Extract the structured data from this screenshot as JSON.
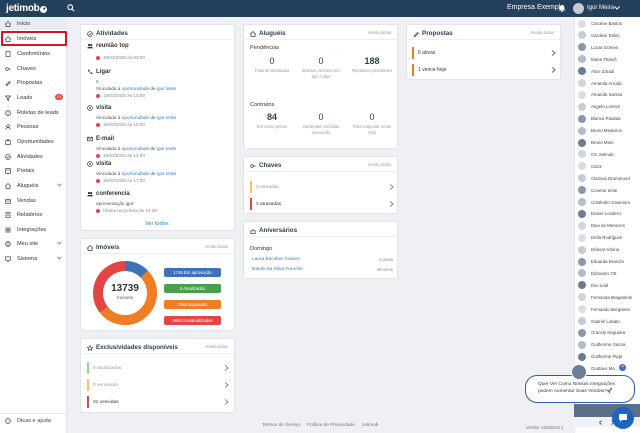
{
  "header": {
    "logo": "jetimob",
    "company": "Empresa Exemplo",
    "user": "Igor Meira"
  },
  "sidebar": {
    "items": [
      {
        "label": "Início",
        "icon": "home-icon"
      },
      {
        "label": "Imóveis",
        "icon": "house-icon"
      },
      {
        "label": "Condomínios",
        "icon": "building-icon"
      },
      {
        "label": "Chaves",
        "icon": "key-icon"
      },
      {
        "label": "Propostas",
        "icon": "proposal-icon"
      },
      {
        "label": "Leads",
        "icon": "leads-icon",
        "badge": "10"
      },
      {
        "label": "Roletas de leads",
        "icon": "roulette-icon"
      },
      {
        "label": "Pessoas",
        "icon": "people-icon"
      },
      {
        "label": "Oportunidades",
        "icon": "opportunity-icon"
      },
      {
        "label": "Atividades",
        "icon": "activities-icon"
      },
      {
        "label": "Portais",
        "icon": "portals-icon"
      },
      {
        "label": "Aluguéis",
        "icon": "rent-icon"
      },
      {
        "label": "Vendas",
        "icon": "sales-icon"
      },
      {
        "label": "Relatórios",
        "icon": "reports-icon"
      },
      {
        "label": "Integrações",
        "icon": "integrations-icon"
      },
      {
        "label": "Meu site",
        "icon": "site-icon"
      },
      {
        "label": "Sistema",
        "icon": "system-icon"
      }
    ],
    "footer": "Dicas e ajuda"
  },
  "activities": {
    "title": "Atividades",
    "items": [
      {
        "title": "reunião top",
        "lines": [],
        "date": "19/03/2025 às 03:00"
      },
      {
        "title": "Ligar",
        "lines": [
          "0",
          "Vinculada à |oportunidade| de |igor teste"
        ],
        "date": "19/03/2025 às 10:00"
      },
      {
        "title": "visita",
        "lines": [
          "Vinculada à |oportunidade| de |igor teste"
        ],
        "date": "19/03/2025 às 10:00"
      },
      {
        "title": "E-mail",
        "lines": [
          "Vinculada à |oportunidade| de |igor teste"
        ],
        "date": "19/03/2025 às 14:00"
      },
      {
        "title": "visita",
        "lines": [
          "Vinculada à |oportunidade| de |igor teste"
        ],
        "date": "19/03/2025 às 17:00"
      },
      {
        "title": "conferencia",
        "lines": [
          "apresentação igor"
        ],
        "date": "Última terça-feira às 13:00"
      }
    ],
    "see_all": "Ver todos"
  },
  "properties": {
    "title": "Imóveis",
    "more": "Venda todos",
    "total": "13739",
    "total_label": "Imóveis",
    "statuses": [
      {
        "label": "1748 Em aprovação",
        "color": "#3d73b5",
        "value": 1748
      },
      {
        "label": "6 Atualizados",
        "color": "#47a04d",
        "value": 6
      },
      {
        "label": "7088 Expirados",
        "color": "#ef7d23",
        "value": 7088
      },
      {
        "label": "4893 Desatualizados",
        "color": "#e34545",
        "value": 4893
      }
    ]
  },
  "exclusives": {
    "title": "Exclusividades disponíveis",
    "more": "Venda todos",
    "rows": [
      {
        "label": "0 atualizadas",
        "color": "#9ed29e"
      },
      {
        "label": "0 vencendo",
        "color": "#f5c16a"
      },
      {
        "label": "31 vencidas",
        "color": "#e34545"
      }
    ]
  },
  "rentals": {
    "title": "Aluguéis",
    "more": "Venda todos",
    "pendencias_label": "Pendências",
    "pendencias": [
      {
        "value": "0",
        "label": "Faturas atrasadas",
        "bold": false
      },
      {
        "value": "0",
        "label": "Boletos vencem em até 7 dias",
        "bold": false
      },
      {
        "value": "188",
        "label": "Repasses pendentes",
        "bold": true
      }
    ],
    "contratos_label": "Contratos",
    "contratos": [
      {
        "value": "84",
        "label": "Em aviso prévio",
        "bold": true
      },
      {
        "value": "0",
        "label": "Garantias vencidas vencendo",
        "bold": false
      },
      {
        "value": "0",
        "label": "Para reajustar neste mês",
        "bold": false
      }
    ]
  },
  "keys": {
    "title": "Chaves",
    "more": "Venda todos",
    "rows": [
      {
        "label": "0 retiradas",
        "color": "#f5c16a"
      },
      {
        "label": "3 atrasadas",
        "color": "#e34545"
      }
    ]
  },
  "birthdays": {
    "title": "Aniversários",
    "day": "Domingo",
    "people": [
      {
        "name": "Laura Escobar Soares",
        "age": "3 anos"
      },
      {
        "name": "Danilo da Silva Furucho",
        "age": "38 anos"
      }
    ]
  },
  "proposals": {
    "title": "Propostas",
    "more": "Venda todos",
    "rows": [
      {
        "label": "6 ativas"
      },
      {
        "label": "1 vence hoje"
      }
    ]
  },
  "people": [
    "Caroline Bastos",
    "Caroline Dolito",
    "Lucas Gomes",
    "Maria Thamê",
    "Alice Zdradi",
    "Amanda Arruda",
    "Amanda Santos",
    "Angelo Lorenzi",
    "Bianca Paulata",
    "Bruno Medeiros",
    "Bruno Melo",
    "CS Jetimob",
    "Carol",
    "Clarissa Drummond",
    "Conetur teste",
    "Cristhofer Casemiro",
    "Daniel Londero",
    "Davi de Menezes",
    "Della Rodriguez",
    "Débora Vitória",
    "Eduarda Branchi",
    "Elizandro Ott",
    "Eric Leal",
    "Fernanda Bragantolo",
    "Fernando Bergamer",
    "Gabriel Lobato",
    "Gracely Nogueira",
    "Guilherme Garcia",
    "Guilherme Pippi",
    "Gustavo Ma..."
  ],
  "chat": {
    "text": "Quer Ver Como Nossas Integrações podem Aumentar Suas Vendas?🚀"
  },
  "footer": {
    "links": [
      "Termos de Serviço",
      "Política de Privacidade",
      "Jetimob"
    ],
    "version": "Versão: 20250325.1"
  }
}
